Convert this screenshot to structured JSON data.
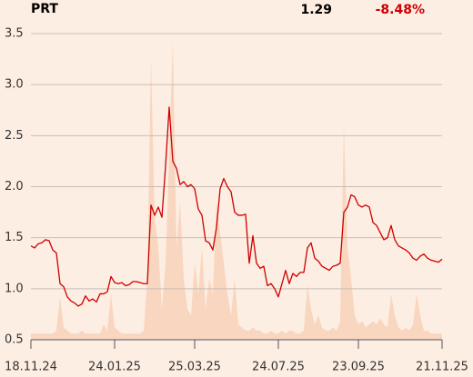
{
  "chart_data": {
    "type": "line",
    "title": "PRT",
    "last_price": 1.29,
    "change": -8.48,
    "change_label": "-8.48%",
    "x": [
      0,
      1,
      2,
      3,
      4,
      5,
      6,
      7,
      8,
      9,
      10,
      11,
      12,
      13,
      14,
      15,
      16,
      17,
      18,
      19,
      20,
      21,
      22,
      23,
      24,
      25,
      26,
      27,
      28,
      29,
      30,
      31,
      32,
      33,
      34,
      35,
      36,
      37,
      38,
      39,
      40,
      41,
      42,
      43,
      44,
      45,
      46,
      47,
      48,
      49,
      50,
      51,
      52,
      53,
      54,
      55,
      56,
      57,
      58,
      59,
      60,
      61,
      62,
      63,
      64,
      65,
      66,
      67,
      68,
      69,
      70,
      71,
      72,
      73,
      74,
      75,
      76,
      77,
      78,
      79,
      80,
      81,
      82,
      83,
      84,
      85,
      86,
      87,
      88,
      89,
      90,
      91,
      92,
      93,
      94,
      95,
      96,
      97,
      98,
      99,
      100,
      101,
      102,
      103,
      104,
      105,
      106,
      107,
      108,
      109,
      110,
      111,
      112,
      113
    ],
    "series": [
      {
        "color": "#cc0000",
        "values": [
          1.42,
          1.4,
          1.44,
          1.45,
          1.48,
          1.47,
          1.38,
          1.35,
          1.05,
          1.02,
          0.92,
          0.88,
          0.86,
          0.83,
          0.85,
          0.93,
          0.88,
          0.9,
          0.87,
          0.95,
          0.95,
          0.97,
          1.12,
          1.06,
          1.05,
          1.06,
          1.03,
          1.04,
          1.07,
          1.07,
          1.06,
          1.05,
          1.05,
          1.82,
          1.72,
          1.8,
          1.7,
          2.2,
          2.78,
          2.25,
          2.18,
          2.02,
          2.05,
          2.0,
          2.02,
          1.98,
          1.78,
          1.72,
          1.47,
          1.45,
          1.38,
          1.6,
          1.98,
          2.08,
          2.0,
          1.95,
          1.75,
          1.72,
          1.72,
          1.73,
          1.25,
          1.52,
          1.25,
          1.2,
          1.22,
          1.03,
          1.05,
          1.0,
          0.92,
          1.05,
          1.18,
          1.05,
          1.15,
          1.12,
          1.16,
          1.16,
          1.4,
          1.45,
          1.3,
          1.27,
          1.22,
          1.2,
          1.18,
          1.22,
          1.23,
          1.25,
          1.75,
          1.8,
          1.92,
          1.9,
          1.82,
          1.8,
          1.82,
          1.8,
          1.65,
          1.62,
          1.55,
          1.48,
          1.5,
          1.62,
          1.48,
          1.42,
          1.4,
          1.38,
          1.35,
          1.3,
          1.28,
          1.32,
          1.34,
          1.3,
          1.28,
          1.27,
          1.26,
          1.29
        ]
      },
      {
        "color": "#f8d6bf",
        "axis": "y2",
        "values": [
          2,
          2,
          2,
          2,
          2,
          2,
          2,
          3,
          14,
          4,
          3,
          2,
          2,
          2,
          3,
          2,
          2,
          2,
          2,
          2,
          5,
          3,
          15,
          4,
          3,
          2,
          2,
          2,
          2,
          2,
          2,
          3,
          20,
          92,
          40,
          30,
          10,
          25,
          60,
          98,
          30,
          45,
          20,
          10,
          8,
          25,
          15,
          30,
          10,
          20,
          15,
          45,
          35,
          25,
          15,
          8,
          20,
          5,
          4,
          3,
          3,
          4,
          3,
          3,
          2,
          2,
          3,
          2,
          2,
          3,
          2,
          3,
          3,
          2,
          2,
          3,
          18,
          10,
          5,
          8,
          4,
          3,
          3,
          4,
          3,
          6,
          70,
          30,
          20,
          8,
          5,
          6,
          4,
          5,
          6,
          5,
          7,
          5,
          4,
          15,
          8,
          4,
          3,
          4,
          3,
          5,
          15,
          8,
          3,
          3,
          2,
          2,
          2,
          2
        ]
      }
    ],
    "xlim": [
      0,
      113
    ],
    "xticks": [
      {
        "value": 0,
        "label": "18.11.24"
      },
      {
        "value": 23,
        "label": "24.01.25"
      },
      {
        "value": 45,
        "label": "25.03.25"
      },
      {
        "value": 68,
        "label": "24.07.25"
      },
      {
        "value": 90,
        "label": "23.09.25"
      },
      {
        "value": 113,
        "label": "21.11.25"
      }
    ],
    "ylim": [
      0.5,
      3.5
    ],
    "yticks": [
      0.5,
      {
        "value": 1,
        "label": "1.0"
      },
      1.5,
      {
        "value": 2,
        "label": "2.0"
      },
      2.5,
      {
        "value": 3,
        "label": "3.0"
      },
      3.5
    ],
    "y2lim": [
      0,
      100
    ],
    "grid": true
  }
}
